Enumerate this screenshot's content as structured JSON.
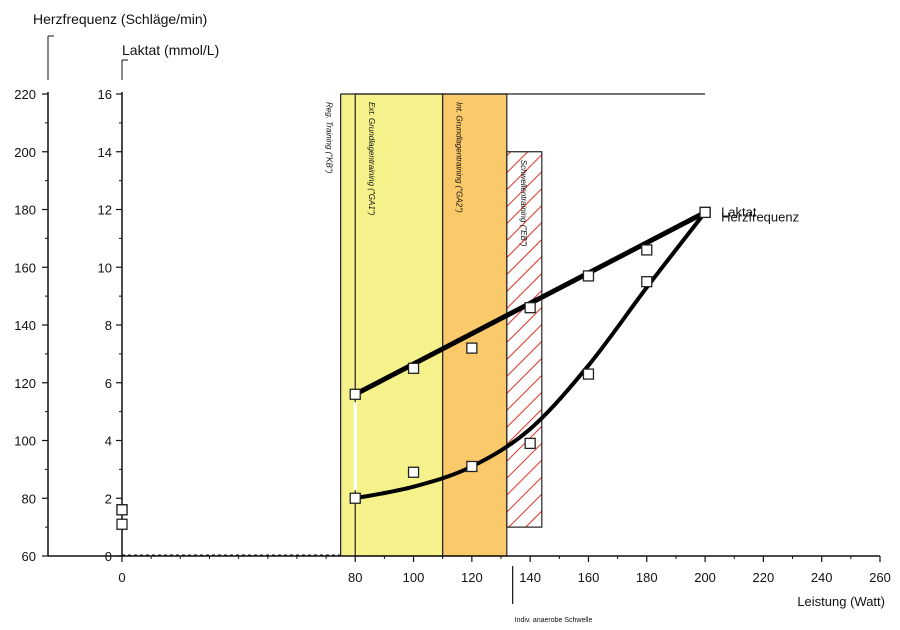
{
  "chart_data": {
    "type": "line",
    "x_axis": {
      "label": "Leistung (Watt)",
      "min": 0,
      "max": 260,
      "ticks": [
        0,
        80,
        100,
        120,
        140,
        160,
        180,
        200,
        220,
        240,
        260
      ]
    },
    "y_axes": [
      {
        "id": "hr",
        "label": "Herzfrequenz (Schläge/min)",
        "min": 60,
        "max": 220,
        "ticks": [
          60,
          80,
          100,
          120,
          140,
          160,
          180,
          200,
          220
        ]
      },
      {
        "id": "lac",
        "label": "Laktat (mmol/L)",
        "min": 0,
        "max": 16,
        "ticks": [
          0,
          2,
          4,
          6,
          8,
          10,
          12,
          14,
          16
        ]
      }
    ],
    "series": [
      {
        "name": "Herzfrequenz",
        "axis": "hr",
        "x": [
          0,
          80,
          100,
          120,
          140,
          160,
          180,
          200
        ],
        "y": [
          76,
          116,
          125,
          132,
          146,
          157,
          166,
          179
        ]
      },
      {
        "name": "Laktat",
        "axis": "lac",
        "x": [
          0,
          80,
          100,
          120,
          140,
          160,
          180,
          200
        ],
        "y": [
          1.6,
          2.0,
          2.9,
          3.1,
          3.9,
          6.3,
          9.5,
          11.9
        ]
      }
    ],
    "zones": [
      {
        "label": "Reg. Training (\"KB\")",
        "x_from": 75,
        "x_to": 80,
        "lac_top": 16
      },
      {
        "label": "Ext. Grundlagentraining (\"GA1\")",
        "x_from": 80,
        "x_to": 110,
        "lac_top": 16,
        "color": "#f5f28c"
      },
      {
        "label": "Int. Grundlagentraining (\"GA2\")",
        "x_from": 110,
        "x_to": 132,
        "lac_top": 16,
        "color": "#f9c96a"
      },
      {
        "label": "Schwellentraining (\"EB\")",
        "x_from": 132,
        "x_to": 144,
        "lac_top": 14,
        "lac_bottom": 1,
        "color": "#e03020"
      }
    ],
    "threshold_label": "Indiv. anaerobe Schwelle",
    "threshold_x": 134,
    "extra_points_hr": [
      71
    ],
    "grid": false
  }
}
